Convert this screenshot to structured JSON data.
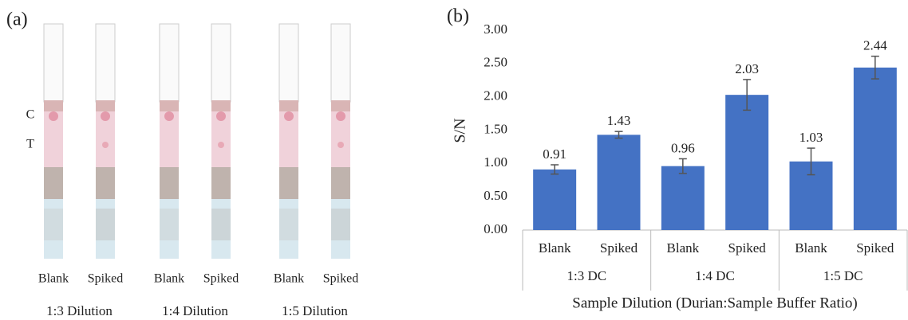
{
  "panel_a": {
    "label": "(a)",
    "line_labels": [
      "C",
      "T"
    ],
    "strips": [
      "Blank",
      "Spiked",
      "Blank",
      "Spiked",
      "Blank",
      "Spiked"
    ],
    "dilutions": [
      "1:3 Dilution",
      "1:4 Dilution",
      "1:5 Dilution"
    ]
  },
  "chart_data": {
    "type": "bar",
    "panel_label": "(b)",
    "categories": [
      "Blank",
      "Spiked",
      "Blank",
      "Spiked",
      "Blank",
      "Spiked"
    ],
    "groups": [
      "1:3 DC",
      "1:4 DC",
      "1:5 DC"
    ],
    "values": [
      0.91,
      1.43,
      0.96,
      2.03,
      1.03,
      2.44
    ],
    "errors": [
      0.07,
      0.05,
      0.11,
      0.23,
      0.2,
      0.17
    ],
    "color": "#4472c4",
    "y_label": "S/N",
    "x_label": "Sample Dilution (Durian:Sample Buffer Ratio)",
    "ylim": [
      0,
      3
    ],
    "yticks": [
      {
        "value": 0,
        "label": "0.00"
      },
      {
        "value": 0.5,
        "label": "0.50"
      },
      {
        "value": 1,
        "label": "1.00"
      },
      {
        "value": 1.5,
        "label": "1.50"
      },
      {
        "value": 2,
        "label": "2.00"
      },
      {
        "value": 2.5,
        "label": "2.50"
      },
      {
        "value": 3,
        "label": "3.00"
      }
    ]
  }
}
